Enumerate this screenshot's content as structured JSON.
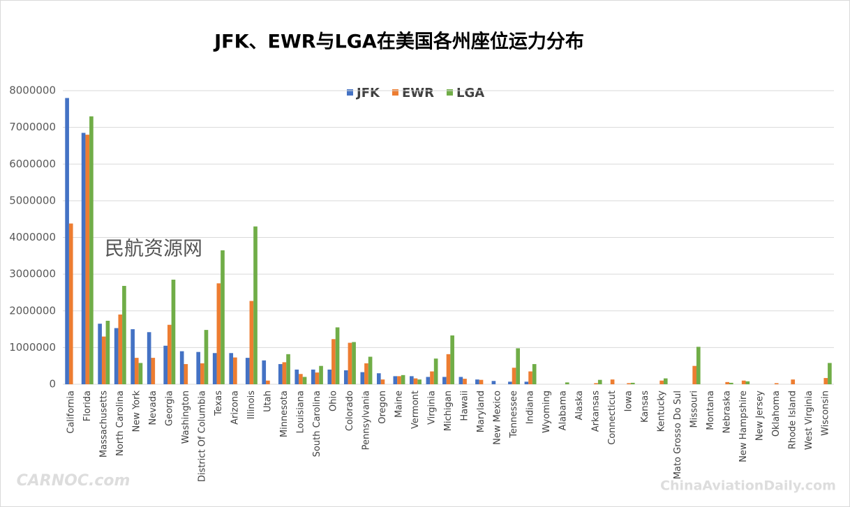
{
  "chart_data": {
    "type": "bar",
    "title": "JFK、EWR与LGA在美国各州座位运力分布",
    "categories": [
      "California",
      "Florida",
      "Massachusetts",
      "North Carolina",
      "New York",
      "Nevada",
      "Georgia",
      "Washington",
      "District Of Columbia",
      "Texas",
      "Arizona",
      "Illinois",
      "Utah",
      "Minnesota",
      "Louisiana",
      "South Carolina",
      "Ohio",
      "Colorado",
      "Pennsylvania",
      "Oregon",
      "Maine",
      "Vermont",
      "Virginia",
      "Michigan",
      "Hawaii",
      "Maryland",
      "New Mexico",
      "Tennessee",
      "Indiana",
      "Wyoming",
      "Alabama",
      "Alaska",
      "Arkansas",
      "Connecticut",
      "Iowa",
      "Kansas",
      "Kentucky",
      "Mato Grosso Do Sul",
      "Missouri",
      "Montana",
      "Nebraska",
      "New Hampshire",
      "New Jersey",
      "Oklahoma",
      "Rhode Island",
      "West Virginia",
      "Wisconsin"
    ],
    "series": [
      {
        "name": "JFK",
        "color": "#4472c4",
        "values": [
          7800000,
          6850000,
          1650000,
          1530000,
          1500000,
          1420000,
          1050000,
          900000,
          880000,
          850000,
          850000,
          720000,
          650000,
          550000,
          400000,
          400000,
          400000,
          380000,
          330000,
          300000,
          220000,
          220000,
          200000,
          200000,
          200000,
          130000,
          90000,
          70000,
          70000,
          0,
          0,
          0,
          0,
          0,
          0,
          0,
          0,
          0,
          0,
          0,
          0,
          0,
          0,
          0,
          0,
          0,
          0
        ]
      },
      {
        "name": "EWR",
        "color": "#ed7d31",
        "values": [
          4380000,
          6800000,
          1300000,
          1900000,
          720000,
          720000,
          1620000,
          550000,
          570000,
          2750000,
          730000,
          2270000,
          100000,
          600000,
          280000,
          320000,
          1230000,
          1130000,
          570000,
          130000,
          220000,
          160000,
          350000,
          820000,
          150000,
          120000,
          0,
          450000,
          350000,
          0,
          0,
          0,
          30000,
          130000,
          30000,
          0,
          100000,
          0,
          500000,
          0,
          60000,
          100000,
          0,
          30000,
          130000,
          0,
          170000
        ]
      },
      {
        "name": "LGA",
        "color": "#70ad47",
        "values": [
          0,
          7300000,
          1730000,
          2680000,
          580000,
          0,
          2850000,
          0,
          1480000,
          3650000,
          0,
          4300000,
          0,
          820000,
          200000,
          500000,
          1550000,
          1150000,
          750000,
          0,
          250000,
          130000,
          700000,
          1330000,
          0,
          0,
          0,
          980000,
          550000,
          0,
          50000,
          0,
          120000,
          0,
          40000,
          0,
          160000,
          0,
          1020000,
          0,
          40000,
          80000,
          0,
          0,
          0,
          0,
          580000
        ]
      }
    ],
    "ylim": [
      0,
      8000000
    ],
    "yticks": [
      0,
      1000000,
      2000000,
      3000000,
      4000000,
      5000000,
      6000000,
      7000000,
      8000000
    ],
    "grid": true,
    "legend": "top",
    "watermarks": [
      "民航资源网",
      "CARNOC.com",
      "ChinaAviationDaily.com"
    ]
  }
}
